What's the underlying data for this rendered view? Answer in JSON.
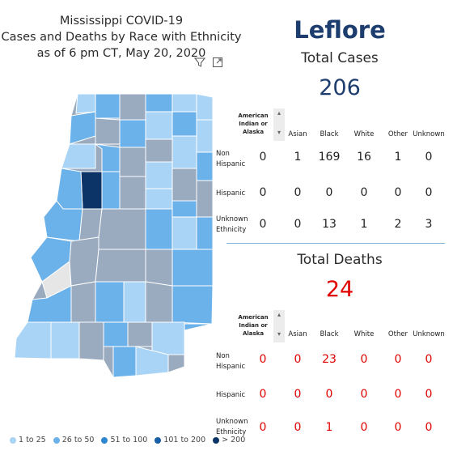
{
  "title": {
    "line1": "Mississippi COVID-19",
    "line2": "Cases and Deaths by Race with Ethnicity",
    "line3": "as of 6 pm CT, May 20, 2020"
  },
  "county": "Leflore",
  "cases": {
    "label": "Total Cases",
    "value": "206",
    "table": {
      "columns": [
        "American Indian or Alaska",
        "Asian",
        "Black",
        "White",
        "Other",
        "Unknown"
      ],
      "rows": [
        {
          "label": [
            "Non",
            "Hispanic"
          ],
          "values": [
            "0",
            "1",
            "169",
            "16",
            "1",
            "0"
          ]
        },
        {
          "label": [
            "Hispanic"
          ],
          "values": [
            "0",
            "0",
            "0",
            "0",
            "0",
            "0"
          ]
        },
        {
          "label": [
            "Unknown",
            "Ethnicity"
          ],
          "values": [
            "0",
            "0",
            "13",
            "1",
            "2",
            "3"
          ]
        }
      ]
    }
  },
  "deaths": {
    "label": "Total Deaths",
    "value": "24",
    "table": {
      "columns": [
        "American Indian or Alaska",
        "Asian",
        "Black",
        "White",
        "Other",
        "Unknown"
      ],
      "rows": [
        {
          "label": [
            "Non",
            "Hispanic"
          ],
          "values": [
            "0",
            "0",
            "23",
            "0",
            "0",
            "0"
          ]
        },
        {
          "label": [
            "Hispanic"
          ],
          "values": [
            "0",
            "0",
            "0",
            "0",
            "0",
            "0"
          ]
        },
        {
          "label": [
            "Unknown",
            "Ethnicity"
          ],
          "values": [
            "0",
            "0",
            "1",
            "0",
            "0",
            "0"
          ]
        }
      ]
    }
  },
  "legend": [
    {
      "label": "1 to 25",
      "color": "#a9d4f5"
    },
    {
      "label": "26 to 50",
      "color": "#6cb2ea"
    },
    {
      "label": "51 to 100",
      "color": "#2f86d0"
    },
    {
      "label": "101 to 200",
      "color": "#175fa6"
    },
    {
      "label": "> 200",
      "color": "#0d3466"
    }
  ],
  "colors": {
    "county_title": "#1c3d6e",
    "cases_value": "#1c3d6e",
    "deaths_value": "#e00000",
    "separator": "#7fb2d8",
    "map_gray": "#9aabbf",
    "map_highlight": "#0d3466"
  },
  "icons": {
    "filter": "filter-icon",
    "expand": "expand-icon"
  }
}
